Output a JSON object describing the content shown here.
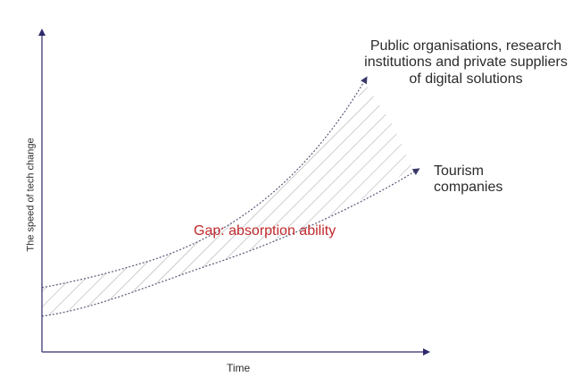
{
  "diagram": {
    "axes": {
      "x_label": "Time",
      "y_label": "The speed of tech change"
    },
    "curves": {
      "upper_label": "Public organisations, research institutions and private suppliers of digital solutions",
      "lower_label": "Tourism companies"
    },
    "gap_label": "Gap: absorption ability",
    "colors": {
      "axis": "#2e2a6b",
      "curve": "#5a5a78",
      "hatch": "#8a8a8a",
      "gap_text": "#c0282b",
      "text": "#2b2b2b"
    }
  }
}
